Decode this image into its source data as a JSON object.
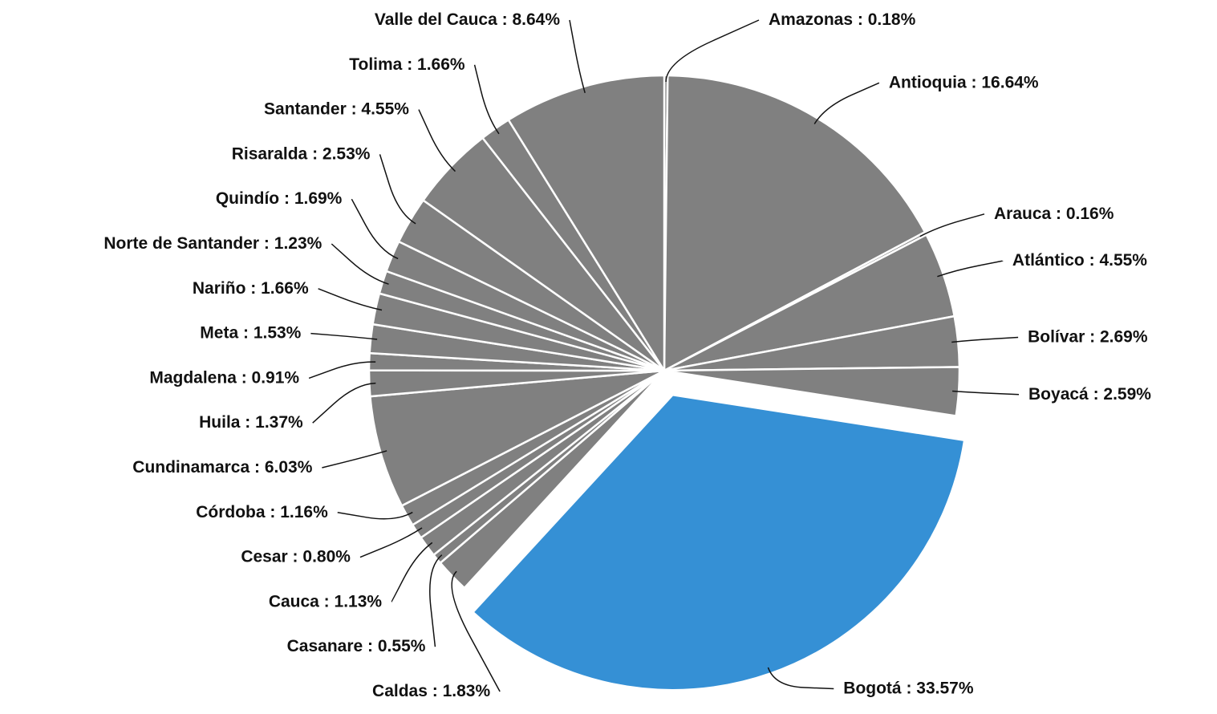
{
  "chart_data": {
    "type": "pie",
    "categories": [
      "Amazonas",
      "Antioquia",
      "Arauca",
      "Atlántico",
      "Bolívar",
      "Boyacá",
      "Bogotá",
      "Caldas",
      "Casanare",
      "Cauca",
      "Cesar",
      "Córdoba",
      "Cundinamarca",
      "Huila",
      "Magdalena",
      "Meta",
      "Nariño",
      "Norte de Santander",
      "Quindío",
      "Risaralda",
      "Santander",
      "Tolima",
      "Valle del Cauca"
    ],
    "values": [
      0.18,
      16.64,
      0.16,
      4.55,
      2.69,
      2.59,
      33.57,
      1.83,
      0.55,
      1.13,
      0.8,
      1.16,
      6.03,
      1.37,
      0.91,
      1.53,
      1.66,
      1.23,
      1.69,
      2.53,
      4.55,
      1.66,
      8.64
    ],
    "value_labels": [
      "0.18%",
      "16.64%",
      "0.16%",
      "4.55%",
      "2.69%",
      "2.59%",
      "33.57%",
      "1.83%",
      "0.55%",
      "1.13%",
      "0.80%",
      "1.16%",
      "6.03%",
      "1.37%",
      "0.91%",
      "1.53%",
      "1.66%",
      "1.23%",
      "1.69%",
      "2.53%",
      "4.55%",
      "1.66%",
      "8.64%"
    ],
    "label_separator": " : ",
    "colors": [
      "#808080",
      "#808080",
      "#808080",
      "#808080",
      "#808080",
      "#808080",
      "#3590d5",
      "#808080",
      "#808080",
      "#808080",
      "#808080",
      "#808080",
      "#808080",
      "#808080",
      "#808080",
      "#808080",
      "#808080",
      "#808080",
      "#808080",
      "#808080",
      "#808080",
      "#808080",
      "#808080"
    ],
    "exploded": [
      6
    ]
  }
}
